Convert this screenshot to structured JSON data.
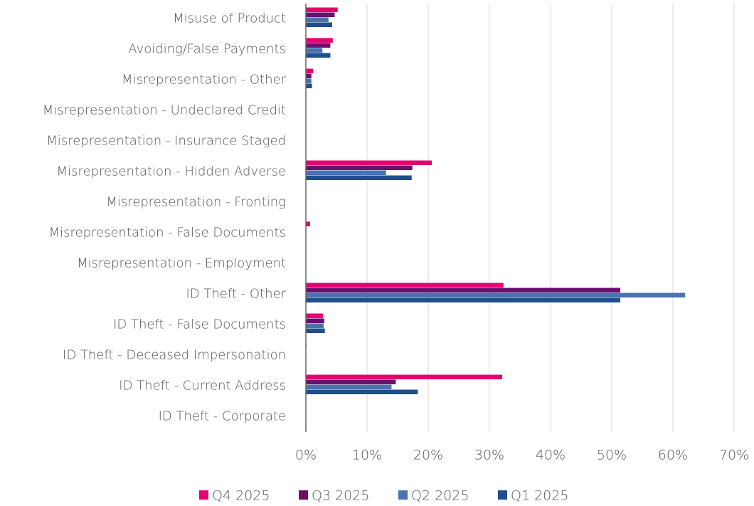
{
  "chart_data": {
    "type": "hbar",
    "categories": [
      "Misuse of Product",
      "Avoiding/False Payments",
      "Misrepresentation - Other",
      "Misrepresentation - Undeclared Credit",
      "Misrepresentation - Insurance Staged",
      "Misrepresentation - Hidden Adverse",
      "Misrepresentation - Fronting",
      "Misrepresentation - False Documents",
      "Misrepresentation - Employment",
      "ID Theft - Other",
      "ID Theft - False Documents",
      "ID Theft - Deceased Impersonation",
      "ID Theft - Current Address",
      "ID Theft - Corporate"
    ],
    "series": [
      {
        "name": "Q4 2025",
        "color": "#e5006e",
        "values": [
          5.2,
          4.4,
          1.2,
          0,
          0,
          20.6,
          0,
          0.7,
          0,
          32.3,
          2.8,
          0.1,
          32.1,
          0
        ]
      },
      {
        "name": "Q3 2025",
        "color": "#6b0f6f",
        "values": [
          4.7,
          4.0,
          0.9,
          0,
          0,
          17.4,
          0,
          0,
          0,
          51.4,
          3.0,
          0,
          14.7,
          0
        ]
      },
      {
        "name": "Q2 2025",
        "color": "#4a72b0",
        "values": [
          3.7,
          2.7,
          0.9,
          0,
          0,
          13.1,
          0,
          0,
          0,
          62.0,
          2.9,
          0,
          14.0,
          0
        ]
      },
      {
        "name": "Q1 2025",
        "color": "#1f4e8c",
        "values": [
          4.3,
          4.0,
          1.0,
          0,
          0,
          17.3,
          0,
          0,
          0,
          51.4,
          3.1,
          0,
          18.3,
          0
        ]
      }
    ],
    "xlim": [
      0,
      70
    ],
    "xticks": [
      {
        "value": 0,
        "label": "0%"
      },
      {
        "value": 10,
        "label": "10%"
      },
      {
        "value": 20,
        "label": "20%"
      },
      {
        "value": 30,
        "label": "30%"
      },
      {
        "value": 40,
        "label": "40%"
      },
      {
        "value": 50,
        "label": "50%"
      },
      {
        "value": 60,
        "label": "60%"
      },
      {
        "value": 70,
        "label": "70%"
      }
    ],
    "grid": true,
    "legend": "bottom"
  }
}
